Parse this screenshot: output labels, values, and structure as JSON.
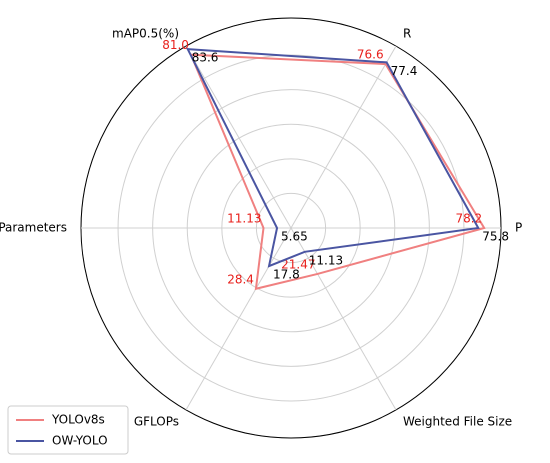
{
  "chart_data": {
    "type": "radar",
    "categories": [
      "P",
      "R",
      "mAP0.5(%)",
      "Parameters",
      "GFLOPs",
      "Weighted File Size"
    ],
    "series": [
      {
        "name": "YOLOv8s",
        "color": "#f08080",
        "values": [
          78.2,
          76.6,
          81.0,
          11.13,
          28.4,
          21.47
        ],
        "value_labels": [
          "78.2",
          "76.6",
          "81.0",
          "11.13",
          "28.4",
          "21.47"
        ]
      },
      {
        "name": "OW-YOLO",
        "color": "#4a55a2",
        "values": [
          75.8,
          77.4,
          83.6,
          5.65,
          17.8,
          11.13
        ],
        "value_labels": [
          "75.8",
          "77.4",
          "83.6",
          "5.65",
          "17.8",
          "11.13"
        ]
      }
    ],
    "ylim": [
      0,
      85
    ],
    "yticks": [
      14,
      28,
      42,
      56,
      70,
      85
    ],
    "grid": true,
    "legend": "lower left"
  }
}
